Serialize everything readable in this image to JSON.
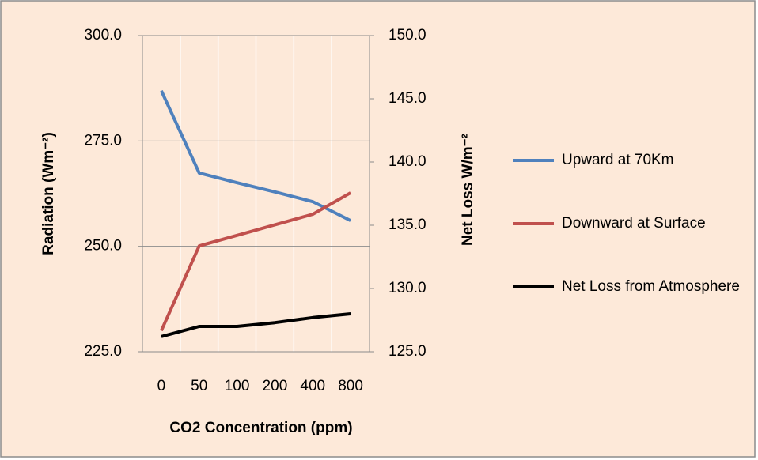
{
  "chart_data": {
    "type": "line",
    "x_label": "CO2 Concentration (ppm)",
    "y_label": "Radiation (Wm⁻²)",
    "y2_label": "Net Loss W/m⁻²",
    "categories": [
      "0",
      "50",
      "100",
      "200",
      "400",
      "800"
    ],
    "series": [
      {
        "name": "Upward at 70Km",
        "color": "#4f81bd",
        "axis": "y",
        "values": [
          286.9,
          267.4,
          265.1,
          262.9,
          260.6,
          256.1
        ]
      },
      {
        "name": "Downward at Surface",
        "color": "#c0504d",
        "axis": "y",
        "values": [
          230.0,
          250.1,
          252.6,
          255.1,
          257.6,
          262.7
        ]
      },
      {
        "name": "Net Loss from Atmosphere",
        "color": "#000000",
        "axis": "y2",
        "values": [
          126.2,
          127.0,
          127.0,
          127.3,
          127.7,
          128.0
        ]
      }
    ],
    "ylim": [
      225,
      300
    ],
    "yticks": [
      {
        "value": 225,
        "label": "225.0"
      },
      {
        "value": 250,
        "label": "250.0"
      },
      {
        "value": 275,
        "label": "275.0"
      },
      {
        "value": 300,
        "label": "300.0"
      }
    ],
    "y2lim": [
      125,
      150
    ],
    "y2ticks": [
      {
        "value": 125,
        "label": "125.0"
      },
      {
        "value": 130,
        "label": "130.0"
      },
      {
        "value": 135,
        "label": "135.0"
      },
      {
        "value": 140,
        "label": "140.0"
      },
      {
        "value": 145,
        "label": "145.0"
      },
      {
        "value": 150,
        "label": "150.0"
      }
    ],
    "grid": true,
    "legend": "right"
  }
}
